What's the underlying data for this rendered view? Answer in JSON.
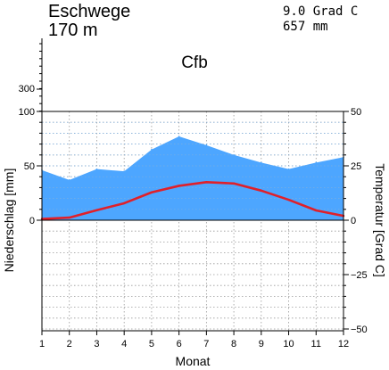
{
  "header": {
    "station": "Eschwege",
    "elevation": "170 m",
    "mean_temp": "9.0 Grad C",
    "annual_precip": "657 mm",
    "climate_class": "Cfb"
  },
  "colors": {
    "precip_fill": "#4da6ff",
    "temp_line": "#e0202a",
    "grid": "#999999"
  },
  "chart_data": {
    "type": "area",
    "x": [
      1,
      2,
      3,
      4,
      5,
      6,
      7,
      8,
      9,
      10,
      11,
      12
    ],
    "xlabel": "Monat",
    "x_ticks": [
      "1",
      "2",
      "3",
      "4",
      "5",
      "6",
      "7",
      "8",
      "9",
      "10",
      "11",
      "12"
    ],
    "series": [
      {
        "values": [
          46,
          37,
          47,
          45,
          65,
          77,
          69,
          60,
          53,
          47,
          53,
          58
        ],
        "axis": "left",
        "type": "area"
      },
      {
        "values": [
          0.6,
          1.2,
          4.6,
          7.8,
          12.8,
          15.8,
          17.5,
          16.9,
          13.6,
          9.4,
          4.5,
          2.0
        ],
        "axis": "right",
        "type": "line"
      }
    ],
    "left_axis": {
      "label": "Niederschlag [mm]",
      "ticks": [
        "100",
        "50",
        "0"
      ],
      "upper_tick": "300"
    },
    "right_axis": {
      "label": "Temperatur [Grad C]",
      "ticks": [
        "50",
        "25",
        "0",
        "−25",
        "−50"
      ],
      "ylim": [
        -50,
        50
      ]
    },
    "grid": true
  }
}
